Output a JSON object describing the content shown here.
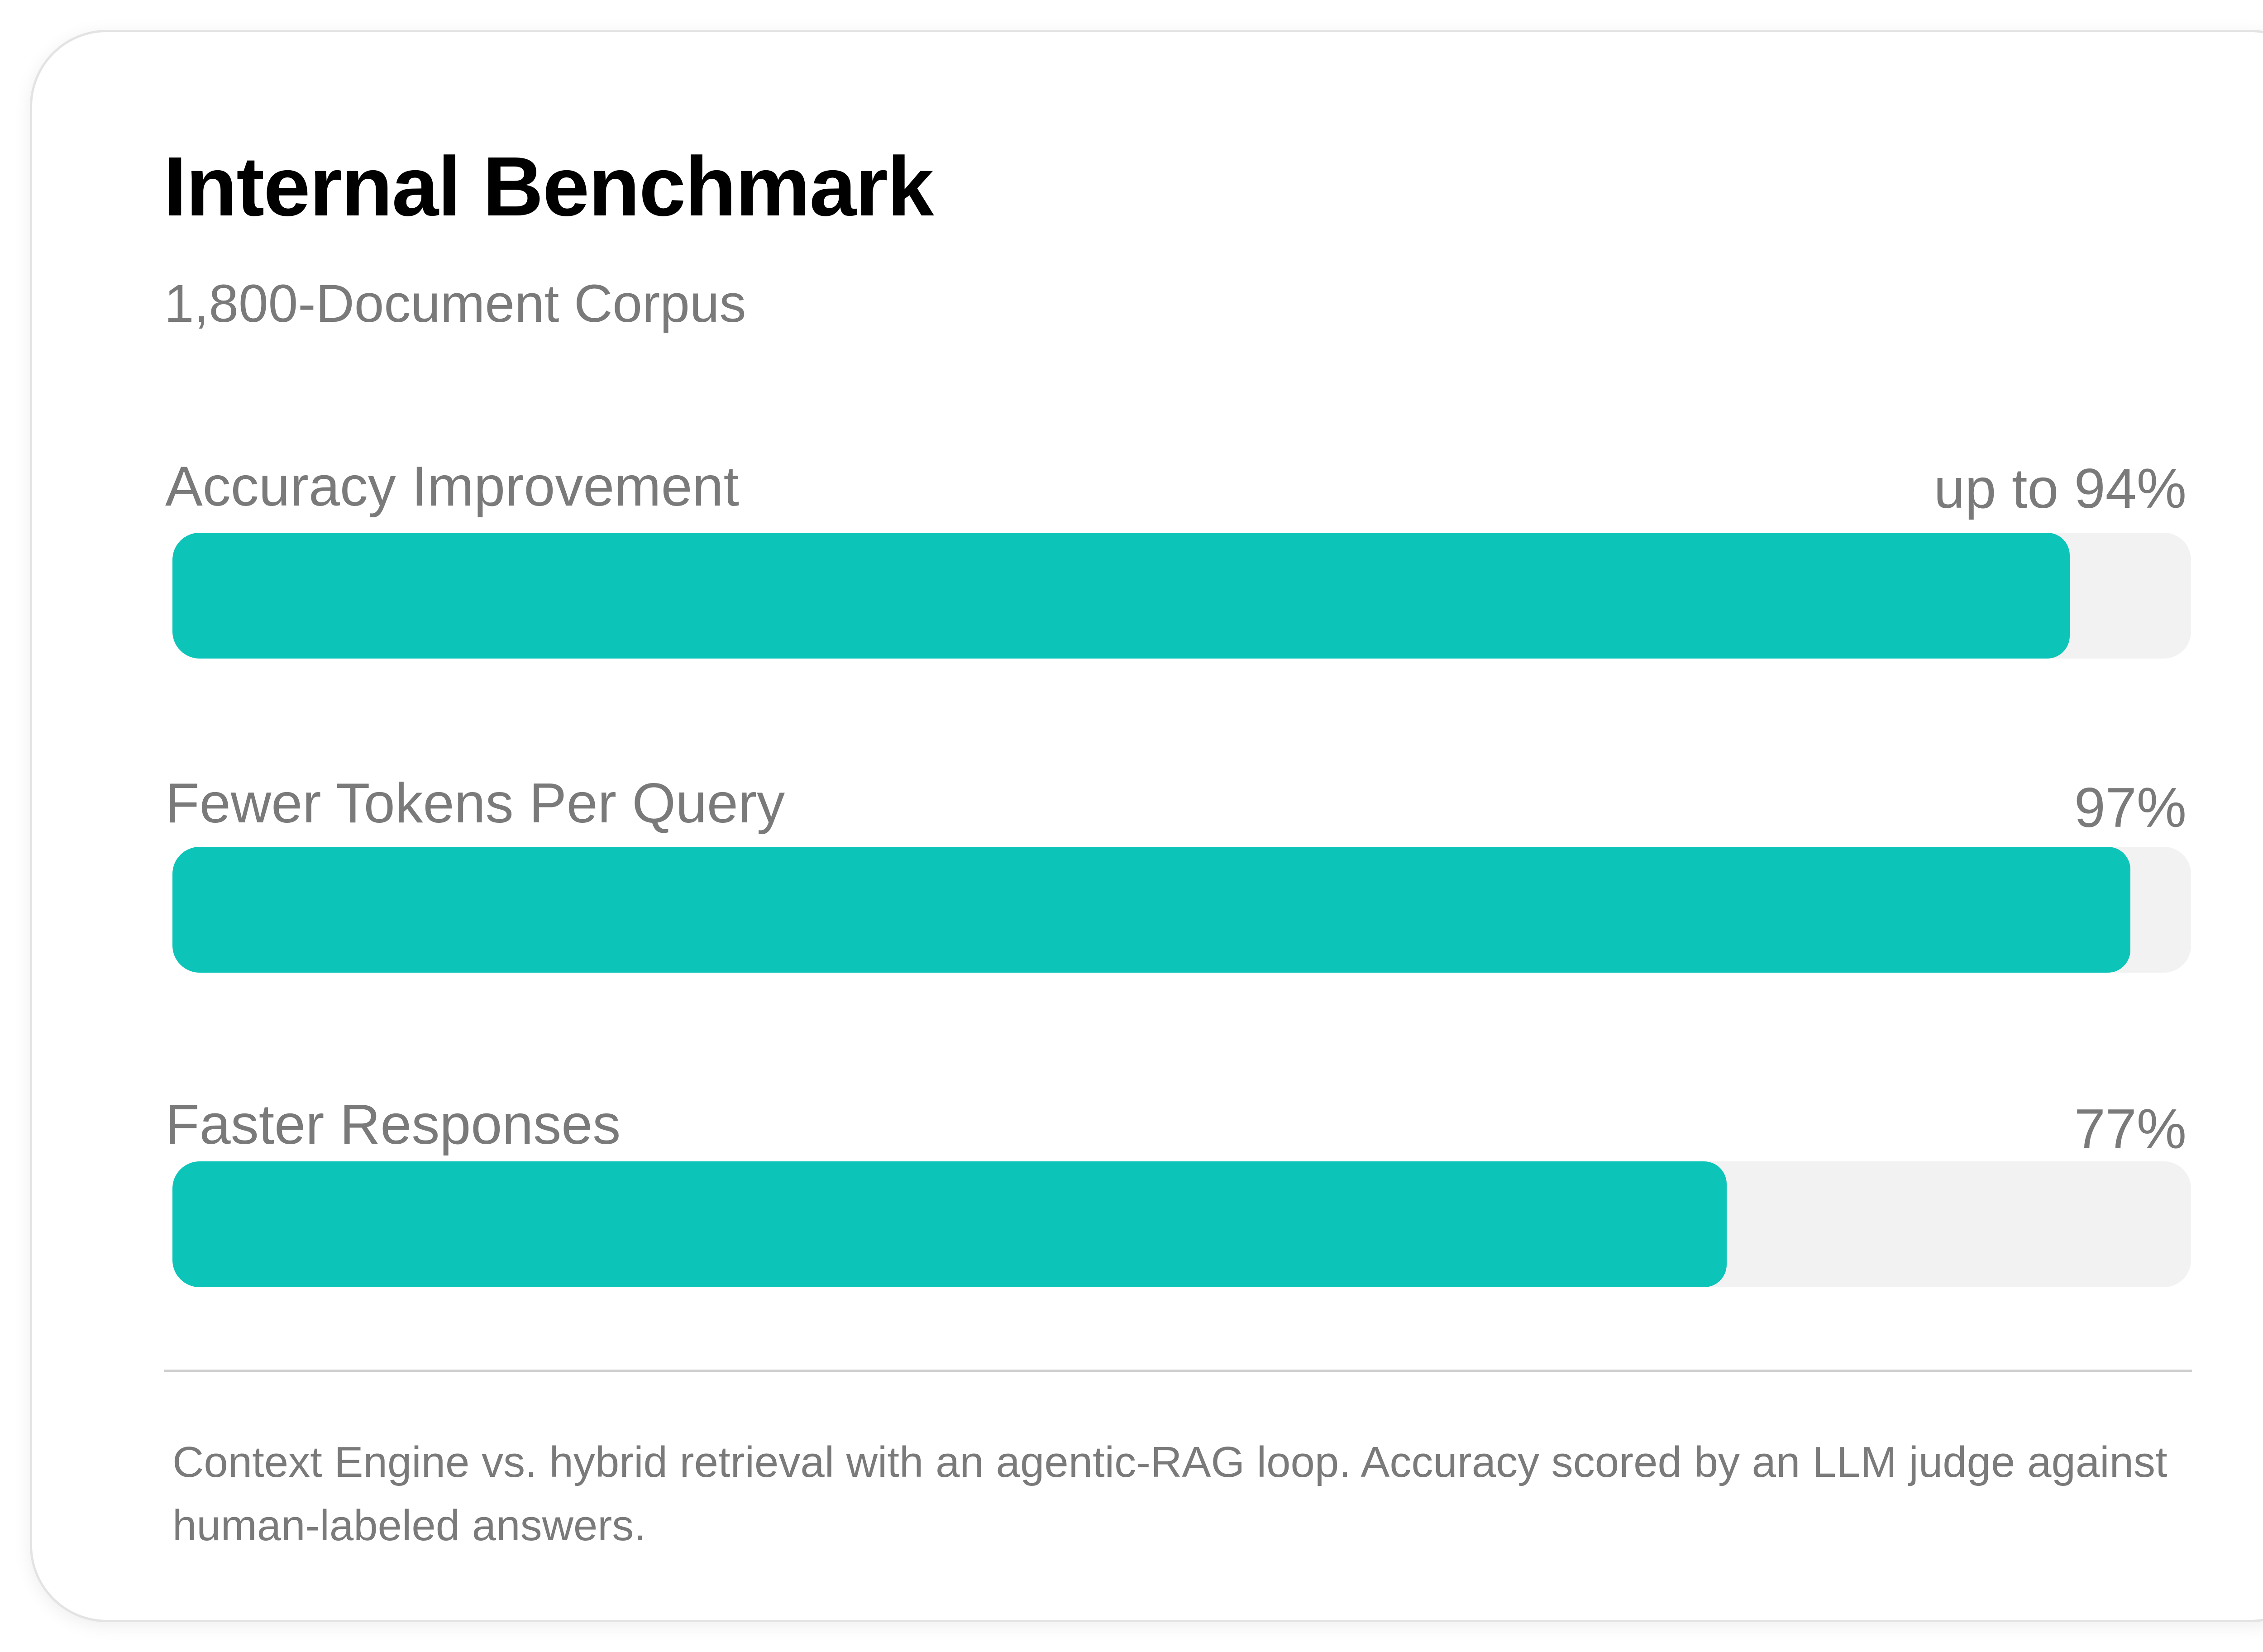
{
  "card": {
    "title": "Internal Benchmark",
    "subtitle": "1,800-Document Corpus",
    "footnote": "Context Engine vs. hybrid retrieval with an agentic-RAG loop. Accuracy scored by an LLM judge against human-labeled answers."
  },
  "colors": {
    "bar_fill": "#0dc4b8",
    "bar_track": "#f2f2f2",
    "text_muted": "#7a7a7a",
    "title": "#000000"
  },
  "chart_data": {
    "type": "bar",
    "orientation": "horizontal",
    "title": "Internal Benchmark",
    "subtitle": "1,800-Document Corpus",
    "categories": [
      "Accuracy Improvement",
      "Fewer Tokens Per Query",
      "Faster Responses"
    ],
    "values": [
      94,
      97,
      77
    ],
    "value_labels": [
      "up to 94%",
      "97%",
      "77%"
    ],
    "unit": "%",
    "xlim": [
      0,
      100
    ],
    "grid": false,
    "legend": "none"
  }
}
